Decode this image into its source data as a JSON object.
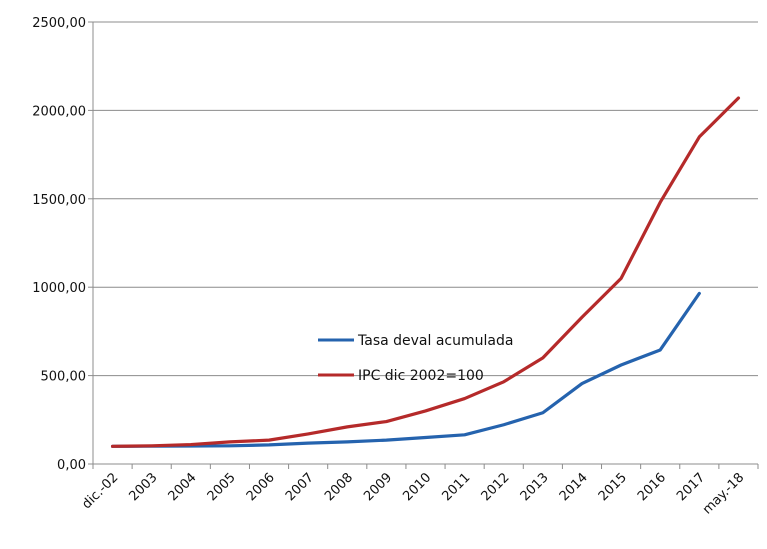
{
  "chart_data": {
    "type": "line",
    "categories": [
      "dic.-02",
      "2003",
      "2004",
      "2005",
      "2006",
      "2007",
      "2008",
      "2009",
      "2010",
      "2011",
      "2012",
      "2013",
      "2014",
      "2015",
      "2016",
      "2017",
      "may.-18"
    ],
    "y_ticks": [
      "0,00",
      "500,00",
      "1000,00",
      "1500,00",
      "2000,00",
      "2500,00"
    ],
    "ylim": [
      0,
      2500
    ],
    "grid": true,
    "legend_position": "center",
    "series": [
      {
        "name": "Tasa deval acumulada",
        "color": "#2563ae",
        "values": [
          100,
          101,
          102,
          103,
          108,
          118,
          125,
          135,
          150,
          165,
          222,
          290,
          455,
          560,
          645,
          965,
          null
        ]
      },
      {
        "name": "IPC  dic 2002=100",
        "color": "#b52a2a",
        "values": [
          100,
          103,
          110,
          125,
          135,
          170,
          210,
          240,
          300,
          370,
          465,
          600,
          830,
          1050,
          1480,
          1850,
          2070
        ]
      }
    ]
  }
}
